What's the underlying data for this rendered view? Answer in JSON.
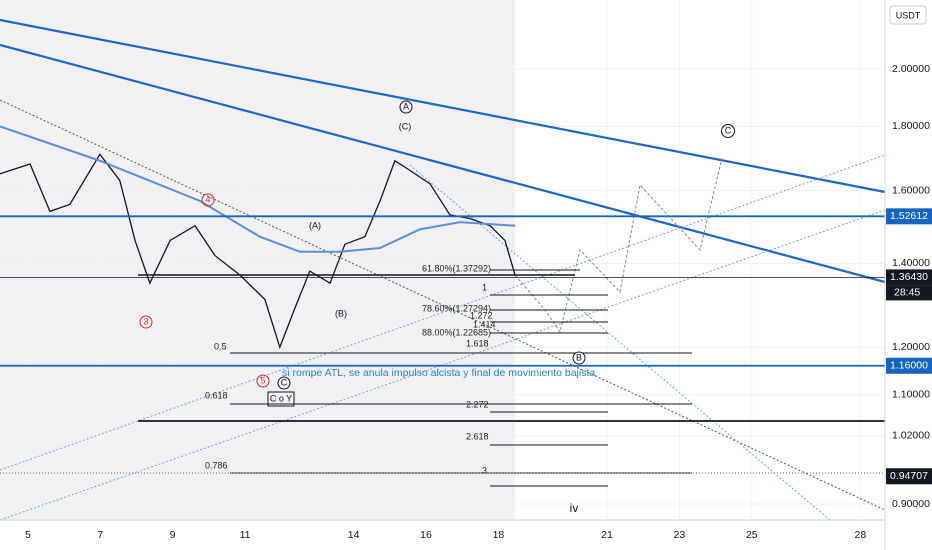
{
  "chart_data": {
    "type": "line",
    "log_scale": true,
    "currency": "USDT",
    "xlim": [
      4.23,
      28.68
    ],
    "ylim": [
      0.874,
      2.27
    ],
    "xticks": [
      5,
      7,
      9,
      11,
      14,
      16,
      18,
      21,
      23,
      25,
      28
    ],
    "yticks": [
      {
        "value": 2,
        "label": "2.00000"
      },
      {
        "value": 1.8,
        "label": "1.80000"
      },
      {
        "value": 1.6,
        "label": "1.60000"
      },
      {
        "value": 1.4,
        "label": "1.40000"
      },
      {
        "value": 1.2,
        "label": "1.20000"
      },
      {
        "value": 1.1,
        "label": "1.10000"
      },
      {
        "value": 1.02,
        "label": "1.02000"
      },
      {
        "value": 0.9,
        "label": "0.90000"
      }
    ],
    "price_labels": [
      {
        "value": 1.52612,
        "label": "1.52612",
        "color": "#1565c0"
      },
      {
        "value": 1.3643,
        "label": "1.36430",
        "color": "#131722"
      },
      {
        "value": 1.16,
        "label": "1.16000",
        "color": "#1565c0"
      },
      {
        "value": 0.94707,
        "label": "0.94707",
        "color": "#131722"
      }
    ],
    "countdown": "28:45",
    "series": [
      {
        "color": "#131722",
        "x": [
          4.23,
          5.06,
          5.61,
          6.16,
          6.99,
          7.54,
          7.96,
          8.37,
          8.93,
          9.62,
          10.17,
          10.86,
          11.55,
          11.96,
          12.38,
          12.79,
          13.35,
          13.76,
          14.31,
          14.73,
          15.14,
          15.56,
          16.11,
          16.66,
          17.21,
          17.77,
          18.18,
          18.46
        ],
        "values": [
          1.65,
          1.68,
          1.54,
          1.56,
          1.71,
          1.63,
          1.46,
          1.35,
          1.46,
          1.5,
          1.42,
          1.37,
          1.31,
          1.2,
          1.29,
          1.38,
          1.35,
          1.45,
          1.47,
          1.57,
          1.69,
          1.66,
          1.62,
          1.53,
          1.52,
          1.5,
          1.46,
          1.37
        ]
      },
      {
        "color": "#5b8fd6",
        "x": [
          4.23,
          6.99,
          9.75,
          11.41,
          12.52,
          13.62,
          14.73,
          15.83,
          16.94,
          18.46
        ],
        "values": [
          1.8,
          1.69,
          1.57,
          1.47,
          1.43,
          1.43,
          1.44,
          1.49,
          1.51,
          1.5
        ]
      }
    ],
    "annotations": {
      "fib": [
        "61.80%(1.37292)",
        "1",
        "78.60%(1.27294)",
        "1.272",
        "1.414",
        "88.00%(1.22685)",
        "1.618",
        "0.5",
        "0.618",
        "0.786",
        "2.272",
        "2.618",
        "3"
      ],
      "waves": [
        "A",
        "(C)",
        "C",
        "(A)",
        "(B)",
        "4",
        "3",
        "5",
        "C",
        "B",
        "C o Y",
        "iv"
      ],
      "note": "si rompe ATL, se anula impulso alcista y final de movimiento bajista"
    }
  }
}
